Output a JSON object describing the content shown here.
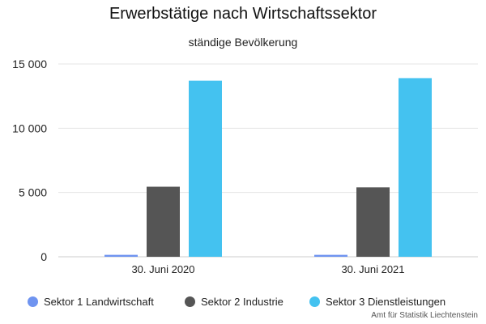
{
  "chart_data": {
    "type": "bar",
    "title": "Erwerbstätige nach Wirtschaftssektor",
    "subtitle": "ständige Bevölkerung",
    "categories": [
      "30. Juni 2020",
      "30. Juni 2021"
    ],
    "series": [
      {
        "name": "Sektor 1 Landwirtschaft",
        "color": "#6f94f0",
        "values": [
          150,
          150
        ]
      },
      {
        "name": "Sektor 2 Industrie",
        "color": "#555555",
        "values": [
          5450,
          5400
        ]
      },
      {
        "name": "Sektor 3 Dienstleistungen",
        "color": "#44c2f0",
        "values": [
          13700,
          13900
        ]
      }
    ],
    "yticks": [
      "0",
      "5 000",
      "10 000",
      "15 000"
    ],
    "ylim": [
      0,
      15000
    ],
    "grid": true,
    "legend_position": "bottom"
  },
  "credit": "Amt für Statistik Liechtenstein"
}
